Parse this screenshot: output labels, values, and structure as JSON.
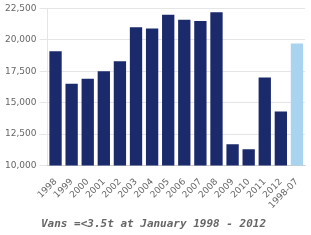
{
  "chart_data": {
    "type": "bar",
    "title": "Vans =<3.5t at January 1998 - 2012",
    "categories": [
      "1998",
      "1999",
      "2000",
      "2001",
      "2002",
      "2003",
      "2004",
      "2005",
      "2006",
      "2007",
      "2008",
      "2009",
      "2010",
      "2011",
      "2012",
      "1998-07"
    ],
    "values": [
      19100,
      16500,
      16900,
      17500,
      18300,
      21000,
      20900,
      22000,
      21600,
      21500,
      22200,
      11700,
      11300,
      17000,
      14300,
      19700
    ],
    "colors": [
      "#1B2A6B",
      "#1B2A6B",
      "#1B2A6B",
      "#1B2A6B",
      "#1B2A6B",
      "#1B2A6B",
      "#1B2A6B",
      "#1B2A6B",
      "#1B2A6B",
      "#1B2A6B",
      "#1B2A6B",
      "#1B2A6B",
      "#1B2A6B",
      "#1B2A6B",
      "#1B2A6B",
      "#A8D4F0"
    ],
    "ylim": [
      10000,
      22500
    ],
    "yticks": [
      {
        "value": 10000,
        "label": "10,000"
      },
      {
        "value": 12500,
        "label": "12,500"
      },
      {
        "value": 15000,
        "label": "15,000"
      },
      {
        "value": 17500,
        "label": "17,500"
      },
      {
        "value": 20000,
        "label": "20,000"
      },
      {
        "value": 22500,
        "label": "22,500"
      }
    ],
    "grid": true
  }
}
